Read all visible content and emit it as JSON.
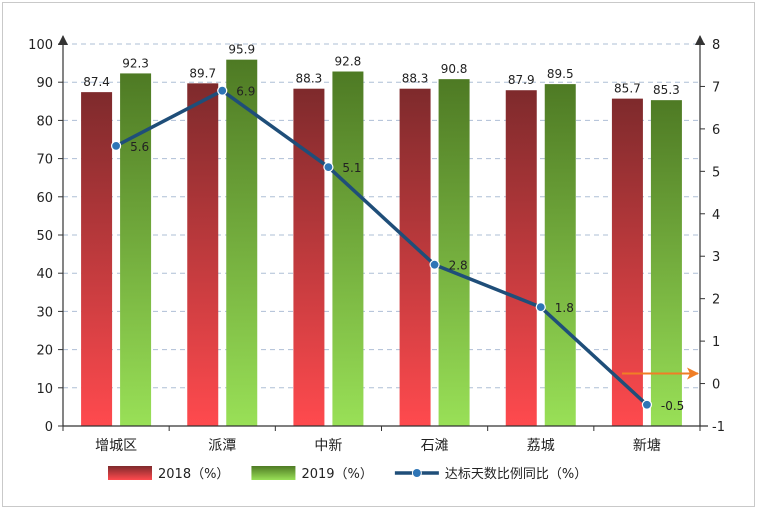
{
  "chart_data": {
    "type": "bar",
    "categories": [
      "增城区",
      "派潭",
      "中新",
      "石滩",
      "荔城",
      "新塘"
    ],
    "series": [
      {
        "name": "2018（%）",
        "type": "bar",
        "axis": "left",
        "values": [
          87.4,
          89.7,
          88.3,
          88.3,
          87.9,
          85.7
        ],
        "color_top": "#7e2a2c",
        "color_bottom": "#ff4a4e"
      },
      {
        "name": "2019（%）",
        "type": "bar",
        "axis": "left",
        "values": [
          92.3,
          95.9,
          92.8,
          90.8,
          89.5,
          85.3
        ],
        "color_top": "#4e7a24",
        "color_bottom": "#99e057"
      },
      {
        "name": "达标天数比例同比（%）",
        "type": "line",
        "axis": "right",
        "values": [
          5.6,
          6.9,
          5.1,
          2.8,
          1.8,
          -0.5
        ],
        "color": "#1f4e79",
        "marker_color": "#2e75b6"
      }
    ],
    "y_left": {
      "min": 0,
      "max": 100,
      "ticks": [
        0,
        10,
        20,
        30,
        40,
        50,
        60,
        70,
        80,
        90,
        100
      ]
    },
    "y_right": {
      "min": -1,
      "max": 8,
      "ticks": [
        -1,
        0,
        1,
        2,
        3,
        4,
        5,
        6,
        7,
        8
      ]
    },
    "grid": "horizontal dashed",
    "legend_position": "bottom",
    "annotation": {
      "type": "arrow",
      "color": "#f07e26",
      "points_to": "right axis 0"
    }
  }
}
